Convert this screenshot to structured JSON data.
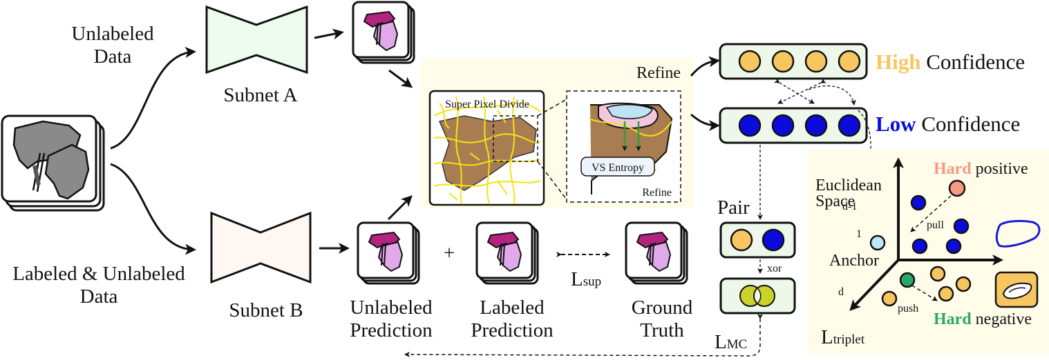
{
  "inputs": {
    "unlabeled_data": [
      "Unlabeled",
      "Data"
    ],
    "labeled_unlabeled_data": [
      "Labeled & Unlabeled",
      "Data"
    ]
  },
  "subnets": {
    "a": "Subnet A",
    "b": "Subnet B"
  },
  "predictions": {
    "unlabeled": [
      "Unlabeled",
      "Prediction"
    ],
    "plus": "+",
    "labeled": [
      "Labeled",
      "Prediction"
    ],
    "ground_truth": [
      "Ground",
      "Truth"
    ],
    "l_sup": {
      "base": "L",
      "sub": "sup"
    }
  },
  "refine_panel": {
    "title": "Refine",
    "superpixel": "Super Pixel Divide",
    "vs_entropy": "VS Entropy",
    "inner_refine": "Refine"
  },
  "confidence": {
    "high_word": "High",
    "high_rest": " Confidence",
    "low_word": "Low",
    "low_rest": " Confidence"
  },
  "pair": {
    "label": "Pair",
    "xor": "xor",
    "l_mc": {
      "base": "L",
      "sub": "MC"
    }
  },
  "embedding": {
    "euclidean": [
      "Euclidean",
      "Space"
    ],
    "axis_d1": "d-1",
    "axis_1": "1",
    "axis_d": "d",
    "hard_positive_word": "Hard",
    "hard_positive_rest": " positive",
    "hard_negative_word": "Hard",
    "hard_negative_rest": " negative",
    "anchor": "Anchor",
    "pull": "pull",
    "push": "push",
    "l_triplet": {
      "base": "L",
      "sub": "triplet"
    }
  },
  "colors": {
    "high": "#f7c660",
    "low": "#0b0bdc",
    "hard_positive": "#f59a82",
    "hard_negative": "#2aa86a",
    "anchor": "#bfe6f7",
    "panel_bg": "#fffdea",
    "subnet_a": "#eefbef",
    "subnet_b": "#fff8f2",
    "organ_magenta": "#b3237f",
    "organ_lilac": "#e0aaea",
    "organ_brown": "#a97d52"
  }
}
